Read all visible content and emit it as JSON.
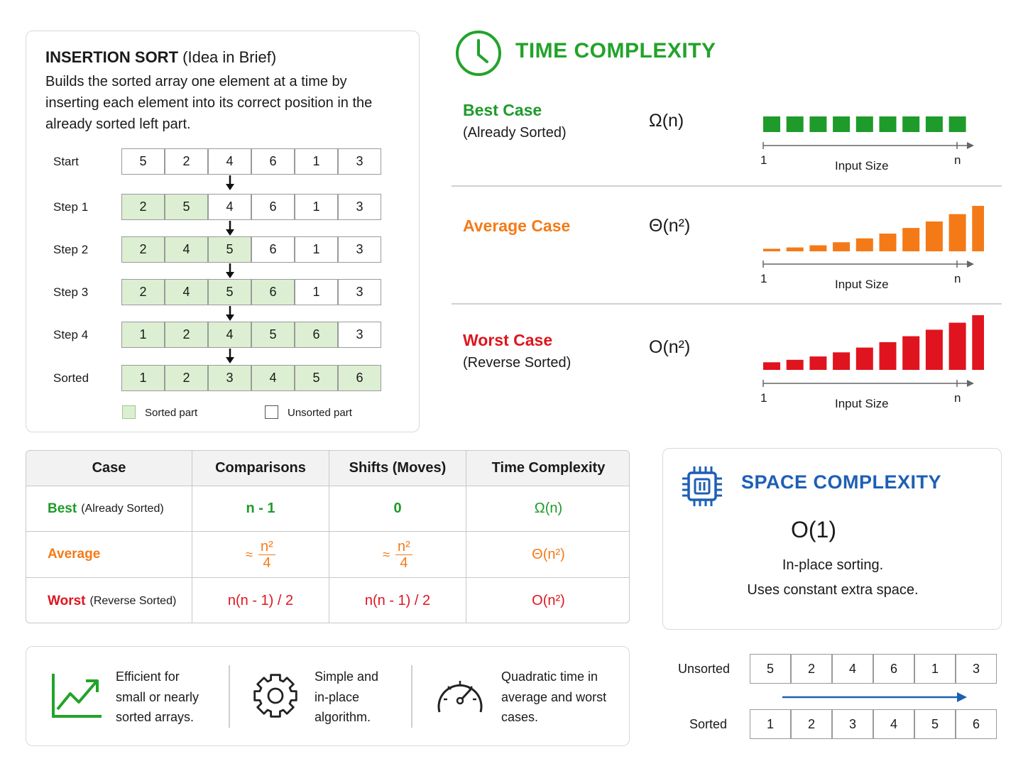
{
  "insertion_sort": {
    "title_bold": "INSERTION SORT",
    "title_rest": "(Idea in Brief)",
    "description": "Builds the sorted array one element at a time by inserting each element into its correct position in the already sorted left part.",
    "steps": [
      {
        "label": "Start",
        "values": [
          "5",
          "2",
          "4",
          "6",
          "1",
          "3"
        ],
        "sorted_count": 0
      },
      {
        "label": "Step 1",
        "values": [
          "2",
          "5",
          "4",
          "6",
          "1",
          "3"
        ],
        "sorted_count": 2
      },
      {
        "label": "Step 2",
        "values": [
          "2",
          "4",
          "5",
          "6",
          "1",
          "3"
        ],
        "sorted_count": 3
      },
      {
        "label": "Step 3",
        "values": [
          "2",
          "4",
          "5",
          "6",
          "1",
          "3"
        ],
        "sorted_count": 4
      },
      {
        "label": "Step 4",
        "values": [
          "1",
          "2",
          "4",
          "5",
          "6",
          "3"
        ],
        "sorted_count": 5
      },
      {
        "label": "Sorted",
        "values": [
          "1",
          "2",
          "3",
          "4",
          "5",
          "6"
        ],
        "sorted_count": 6
      }
    ],
    "legend": {
      "sorted": "Sorted part",
      "unsorted": "Unsorted part"
    }
  },
  "time_complexity": {
    "title": "TIME COMPLEXITY",
    "cases": [
      {
        "name": "Best Case",
        "sub": "(Already Sorted)",
        "notation": "Ω(n)",
        "color": "#1e9b2a"
      },
      {
        "name": "Average Case",
        "sub": "",
        "notation": "Θ(n²)",
        "color": "#f47a17"
      },
      {
        "name": "Worst Case",
        "sub": "(Reverse Sorted)",
        "notation": "O(n²)",
        "color": "#e0141e"
      }
    ],
    "axis": {
      "start": "1",
      "end": "n",
      "label": "Input Size"
    }
  },
  "table": {
    "headers": [
      "Case",
      "Comparisons",
      "Shifts (Moves)",
      "Time Complexity"
    ],
    "rows": [
      {
        "case": "Best",
        "case_sub": "(Already Sorted)",
        "comparisons": "n - 1",
        "shifts": "0",
        "complexity": "Ω(n)",
        "color": "#1e9b2a"
      },
      {
        "case": "Average",
        "case_sub": "",
        "comparisons_approx": "≈",
        "comparisons_num": "n²",
        "comparisons_den": "4",
        "shifts_approx": "≈",
        "shifts_num": "n²",
        "shifts_den": "4",
        "complexity": "Θ(n²)",
        "color": "#f47a17"
      },
      {
        "case": "Worst",
        "case_sub": "(Reverse Sorted)",
        "comparisons": "n(n - 1) / 2",
        "shifts": "n(n - 1) / 2",
        "complexity": "O(n²)",
        "color": "#e0141e"
      }
    ]
  },
  "space_complexity": {
    "title": "SPACE COMPLEXITY",
    "notation": "O(1)",
    "line1": "In-place sorting.",
    "line2": "Uses constant extra space."
  },
  "features": [
    {
      "icon": "trend-up-icon",
      "line1": "Efficient for",
      "line2": "small or nearly",
      "line3": "sorted arrays."
    },
    {
      "icon": "gear-icon",
      "line1": "Simple and",
      "line2": "in-place",
      "line3": "algorithm."
    },
    {
      "icon": "speedometer-icon",
      "line1": "Quadratic time in",
      "line2": "average and worst",
      "line3": "cases."
    }
  ],
  "before_after": {
    "unsorted_label": "Unsorted",
    "unsorted_values": [
      "5",
      "2",
      "4",
      "6",
      "1",
      "3"
    ],
    "sorted_label": "Sorted",
    "sorted_values": [
      "1",
      "2",
      "3",
      "4",
      "5",
      "6"
    ]
  }
}
